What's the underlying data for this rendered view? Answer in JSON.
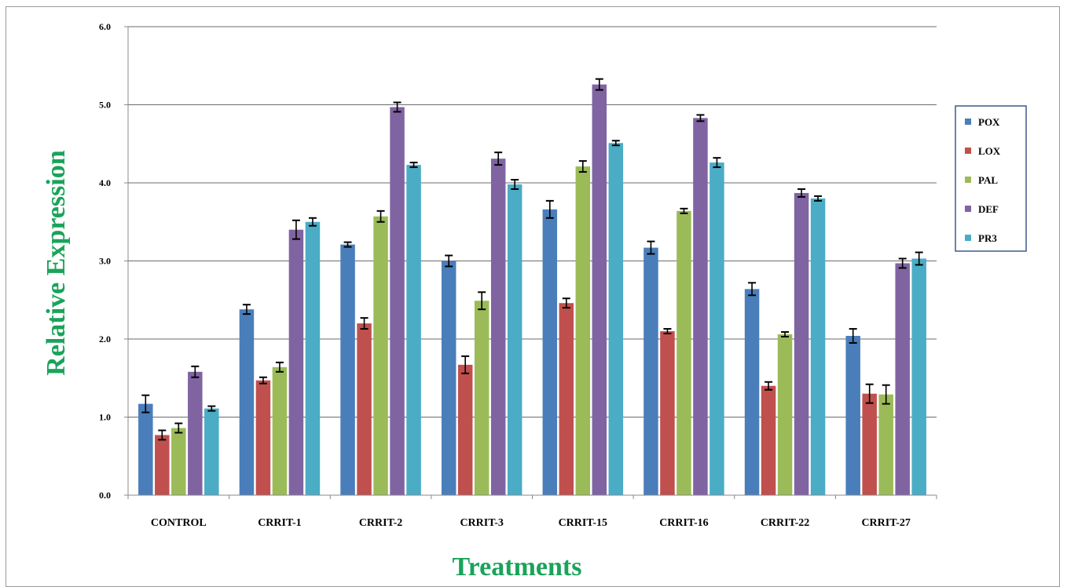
{
  "chart_data": {
    "type": "bar",
    "title": "",
    "xlabel": "Treatments",
    "ylabel": "Relative Expression",
    "ylim": [
      0,
      6
    ],
    "yticks": [
      "0.0",
      "1.0",
      "2.0",
      "3.0",
      "4.0",
      "5.0",
      "6.0"
    ],
    "grid": true,
    "legend_position": "right",
    "categories": [
      "CONTROL",
      "CRRIT-1",
      "CRRIT-2",
      "CRRIT-3",
      "CRRIT-15",
      "CRRIT-16",
      "CRRIT-22",
      "CRRIT-27"
    ],
    "series": [
      {
        "name": "POX",
        "color": "#4a7ebb",
        "values": [
          1.17,
          2.38,
          3.21,
          3.0,
          3.66,
          3.17,
          2.64,
          2.04
        ],
        "errors": [
          0.11,
          0.06,
          0.03,
          0.07,
          0.11,
          0.08,
          0.08,
          0.09
        ]
      },
      {
        "name": "LOX",
        "color": "#c0504d",
        "values": [
          0.77,
          1.47,
          2.2,
          1.67,
          2.46,
          2.1,
          1.4,
          1.3
        ],
        "errors": [
          0.06,
          0.04,
          0.07,
          0.11,
          0.06,
          0.03,
          0.05,
          0.12
        ]
      },
      {
        "name": "PAL",
        "color": "#9bbb59",
        "values": [
          0.86,
          1.64,
          3.57,
          2.49,
          4.21,
          3.64,
          2.06,
          1.29
        ],
        "errors": [
          0.06,
          0.06,
          0.07,
          0.11,
          0.07,
          0.03,
          0.03,
          0.12
        ]
      },
      {
        "name": "DEF",
        "color": "#8064a2",
        "values": [
          1.58,
          3.4,
          4.97,
          4.31,
          5.26,
          4.83,
          3.87,
          2.97
        ],
        "errors": [
          0.07,
          0.12,
          0.06,
          0.08,
          0.07,
          0.04,
          0.05,
          0.06
        ]
      },
      {
        "name": "PR3",
        "color": "#4bacc6",
        "values": [
          1.11,
          3.5,
          4.23,
          3.98,
          4.51,
          4.26,
          3.8,
          3.03
        ],
        "errors": [
          0.03,
          0.05,
          0.03,
          0.06,
          0.03,
          0.06,
          0.03,
          0.08
        ]
      }
    ]
  }
}
